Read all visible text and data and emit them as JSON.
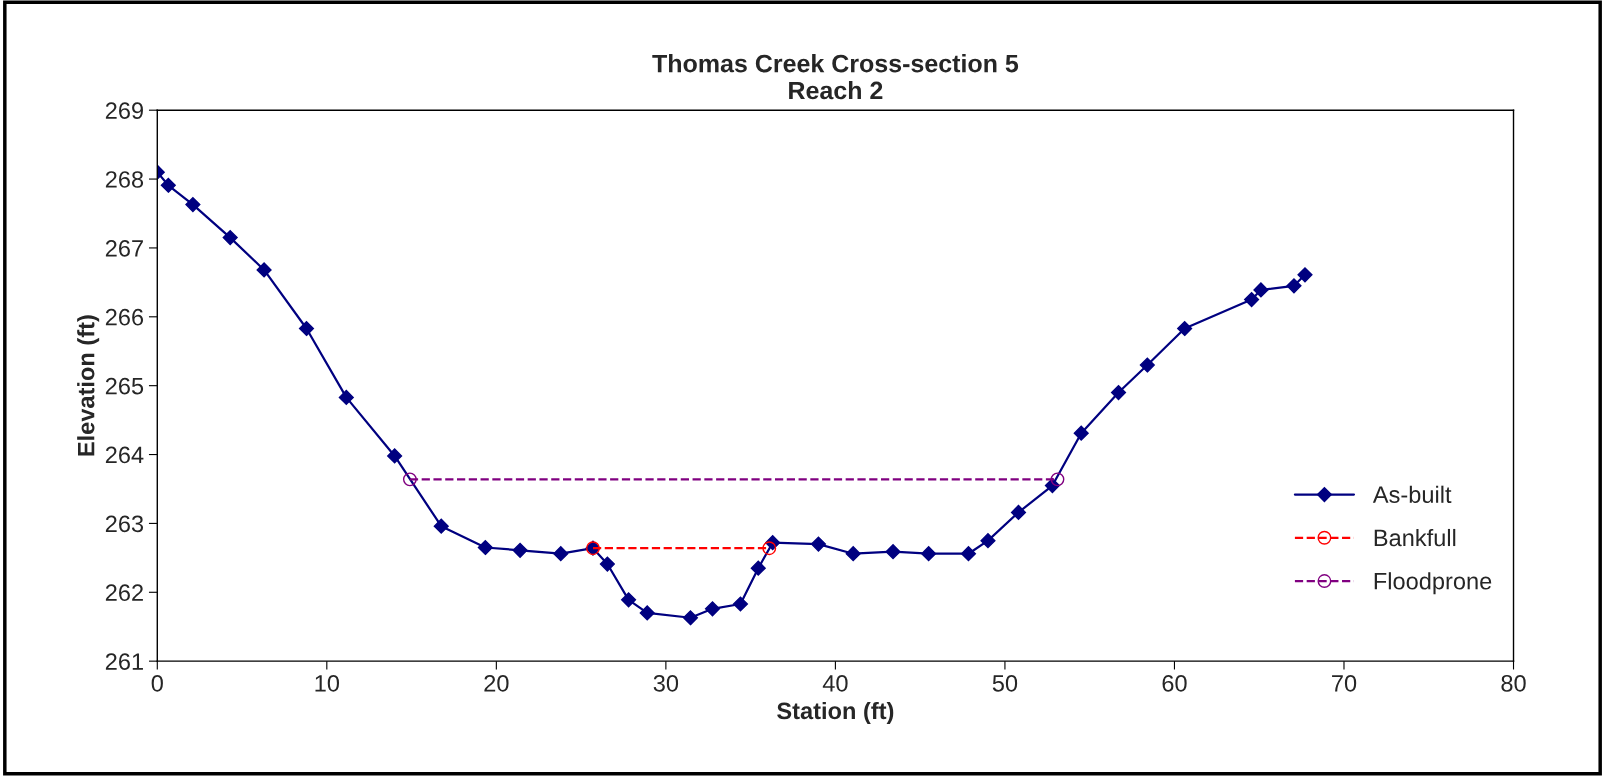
{
  "chart_data": {
    "type": "line",
    "title": "Thomas Creek Cross-section 5\nReach 2",
    "xlabel": "Station (ft)",
    "ylabel": "Elevation (ft)",
    "xlim": [
      0,
      80
    ],
    "xticks": [
      0,
      10,
      20,
      30,
      40,
      50,
      60,
      70,
      80
    ],
    "ylim": [
      261,
      269
    ],
    "yticks": [
      261,
      262,
      263,
      264,
      265,
      266,
      267,
      268,
      269
    ],
    "grid": false,
    "legend": "right",
    "series": [
      {
        "name": "As-built",
        "color": "#000080",
        "marker": "diamond",
        "line_style": "solid",
        "x": [
          0,
          0.65,
          2.1,
          4.3,
          6.3,
          8.8,
          11.15,
          14.0,
          16.75,
          19.35,
          21.4,
          23.8,
          25.7,
          26.55,
          27.8,
          28.9,
          31.45,
          32.75,
          34.4,
          35.45,
          36.3,
          39.0,
          41.05,
          43.4,
          45.5,
          47.85,
          49.0,
          50.8,
          52.8,
          54.5,
          56.7,
          58.4,
          60.6,
          64.55,
          65.1,
          67.05,
          67.7
        ],
        "values": [
          268.1,
          267.91,
          267.63,
          267.15,
          266.68,
          265.83,
          264.83,
          263.98,
          262.96,
          262.65,
          262.61,
          262.56,
          262.64,
          262.41,
          261.89,
          261.7,
          261.63,
          261.76,
          261.83,
          262.35,
          262.72,
          262.7,
          262.56,
          262.59,
          262.56,
          262.56,
          262.75,
          263.16,
          263.55,
          264.31,
          264.9,
          265.3,
          265.83,
          266.25,
          266.39,
          266.45,
          266.61
        ]
      },
      {
        "name": "Bankfull",
        "color": "#ff0000",
        "marker": "circle",
        "line_style": "dashed",
        "x": [
          25.7,
          36.1
        ],
        "values": [
          262.64,
          262.64
        ]
      },
      {
        "name": "Floodprone",
        "color": "#800080",
        "marker": "circle",
        "line_style": "dashed",
        "x": [
          14.9,
          53.1
        ],
        "values": [
          263.64,
          263.64
        ]
      }
    ]
  }
}
